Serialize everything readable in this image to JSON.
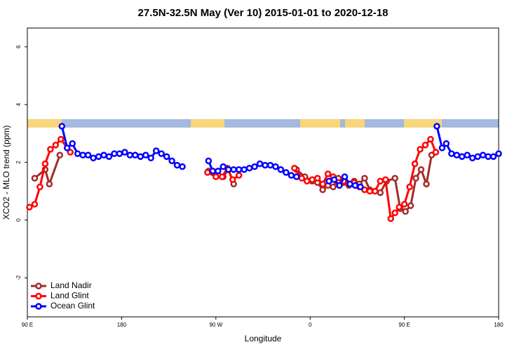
{
  "chart_data": {
    "type": "line",
    "title": "27.5N-32.5N May (Ver 10)   2015-01-01 to 2020-12-18",
    "x_label": "Longitude",
    "y_label": "XCO2 - MLO trend (ppm)",
    "xlim": [
      90,
      540
    ],
    "xticks": [
      {
        "value": 90,
        "label": "90 E"
      },
      180,
      {
        "value": 270,
        "label": "90 W"
      },
      {
        "value": 360,
        "label": "0"
      },
      {
        "value": 450,
        "label": "90 E"
      },
      {
        "value": 540,
        "label": "180"
      }
    ],
    "ylim": [
      -3.35,
      6.65
    ],
    "yticks": [
      -2,
      0,
      2,
      4,
      6
    ],
    "legend": "bottom-left",
    "series": [
      {
        "name": "Land Nadir",
        "color": "#a52a2a",
        "x": [
          97,
          107,
          111,
          121,
          200,
          263,
          267,
          272,
          277,
          282,
          287,
          340,
          347,
          355,
          362,
          367,
          372,
          377,
          382,
          387,
          392,
          397,
          402,
          407,
          412,
          417,
          422,
          427,
          433,
          441,
          446,
          451,
          456,
          461,
          466,
          471,
          476
        ],
        "values": [
          1.45,
          1.75,
          1.25,
          2.25,
          null,
          1.7,
          1.65,
          1.55,
          1.5,
          1.75,
          1.25,
          null,
          1.75,
          1.5,
          1.35,
          1.3,
          1.05,
          1.2,
          1.15,
          1.45,
          1.3,
          1.2,
          1.35,
          1.25,
          1.45,
          1.05,
          1.0,
          0.95,
          1.35,
          1.45,
          0.4,
          0.3,
          0.5,
          1.45,
          1.75,
          1.25,
          2.25
        ]
      },
      {
        "name": "Land Glint",
        "color": "#ff0000",
        "x": [
          92,
          97,
          102,
          107,
          112,
          117,
          122,
          131,
          200,
          262,
          270,
          276,
          281,
          286,
          292,
          340,
          345,
          352,
          357,
          362,
          367,
          372,
          377,
          382,
          387,
          392,
          397,
          402,
          407,
          412,
          417,
          422,
          427,
          432,
          437,
          441,
          445,
          450,
          455,
          460,
          465,
          470,
          475,
          480
        ],
        "values": [
          0.45,
          0.55,
          1.15,
          1.95,
          2.45,
          2.6,
          2.8,
          2.35,
          null,
          1.65,
          1.5,
          1.5,
          1.8,
          1.4,
          1.55,
          null,
          1.8,
          1.45,
          1.35,
          1.4,
          1.45,
          1.25,
          1.6,
          1.5,
          1.3,
          1.35,
          1.25,
          1.3,
          1.15,
          1.05,
          1.0,
          1.0,
          1.35,
          1.4,
          0.05,
          0.25,
          0.45,
          0.55,
          1.15,
          1.95,
          2.45,
          2.6,
          2.8,
          2.35
        ]
      },
      {
        "name": "Ocean Glint",
        "color": "#0000ff",
        "x": [
          123,
          128,
          133,
          138,
          143,
          148,
          153,
          158,
          163,
          168,
          173,
          178,
          183,
          188,
          193,
          198,
          203,
          208,
          213,
          218,
          223,
          228,
          233,
          238,
          250,
          263,
          267,
          272,
          277,
          282,
          287,
          292,
          297,
          302,
          307,
          312,
          317,
          322,
          327,
          332,
          337,
          342,
          347,
          360,
          378,
          383,
          388,
          393,
          398,
          403,
          408,
          440,
          481,
          486,
          490,
          495,
          500,
          505,
          510,
          515,
          520,
          525,
          530,
          535,
          540
        ],
        "values": [
          3.25,
          2.5,
          2.65,
          2.3,
          2.25,
          2.25,
          2.15,
          2.2,
          2.25,
          2.2,
          2.3,
          2.3,
          2.35,
          2.25,
          2.25,
          2.2,
          2.25,
          2.15,
          2.4,
          2.3,
          2.2,
          2.05,
          1.9,
          1.85,
          null,
          2.05,
          1.7,
          1.7,
          1.85,
          1.75,
          1.75,
          1.75,
          1.75,
          1.8,
          1.85,
          1.95,
          1.9,
          1.9,
          1.85,
          1.75,
          1.65,
          1.55,
          1.5,
          null,
          1.35,
          1.4,
          1.2,
          1.5,
          1.25,
          1.2,
          1.15,
          null,
          3.25,
          2.5,
          2.65,
          2.3,
          2.25,
          2.2,
          2.25,
          2.15,
          2.2,
          2.25,
          2.2,
          2.2,
          2.3
        ]
      }
    ]
  }
}
